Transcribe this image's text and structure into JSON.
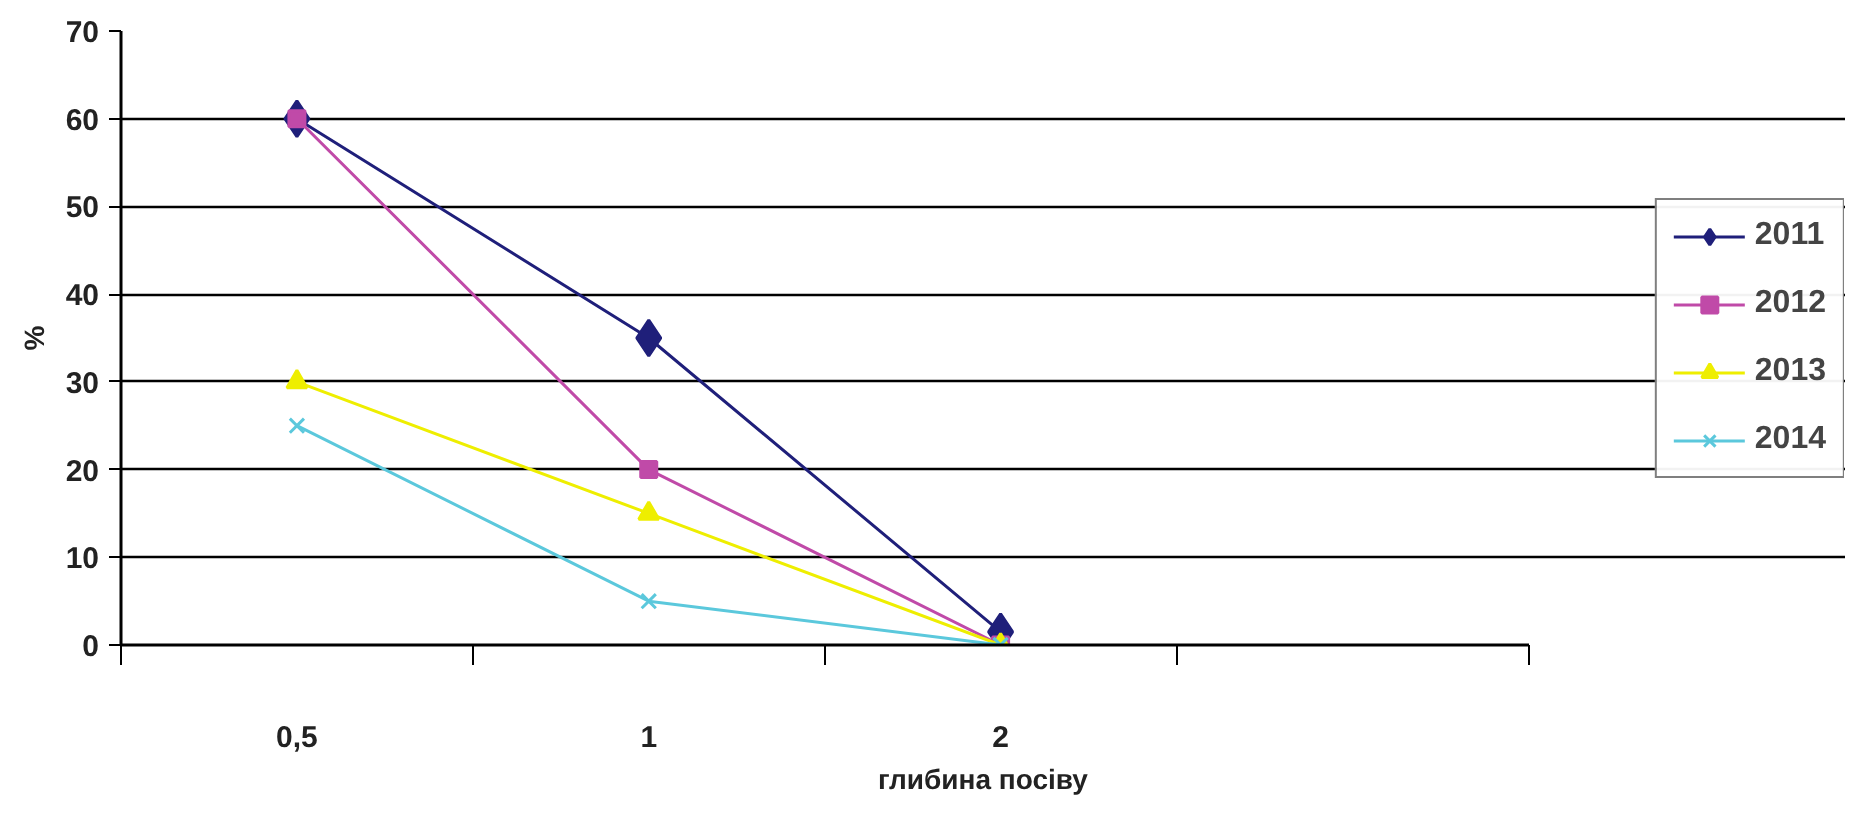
{
  "chart_data": {
    "type": "line",
    "xlabel": "глибина посіву",
    "ylabel": "%",
    "categories": [
      "0,5",
      "1",
      "2",
      null
    ],
    "series": [
      {
        "name": "2011",
        "color": "#1f1f7a",
        "marker": "diamond",
        "values": [
          60,
          35,
          1.5,
          null
        ]
      },
      {
        "name": "2012",
        "color": "#c04aa8",
        "marker": "square",
        "values": [
          60,
          20,
          0,
          null
        ]
      },
      {
        "name": "2013",
        "color": "#eeee00",
        "marker": "triangle",
        "values": [
          30,
          15,
          0,
          null
        ]
      },
      {
        "name": "2014",
        "color": "#5bc8dc",
        "marker": "x",
        "values": [
          25,
          5,
          0,
          null
        ]
      }
    ],
    "ylim": [
      0,
      70
    ],
    "yticks": [
      0,
      10,
      20,
      30,
      40,
      50,
      60,
      70
    ],
    "grid": "y",
    "legend": "right"
  }
}
